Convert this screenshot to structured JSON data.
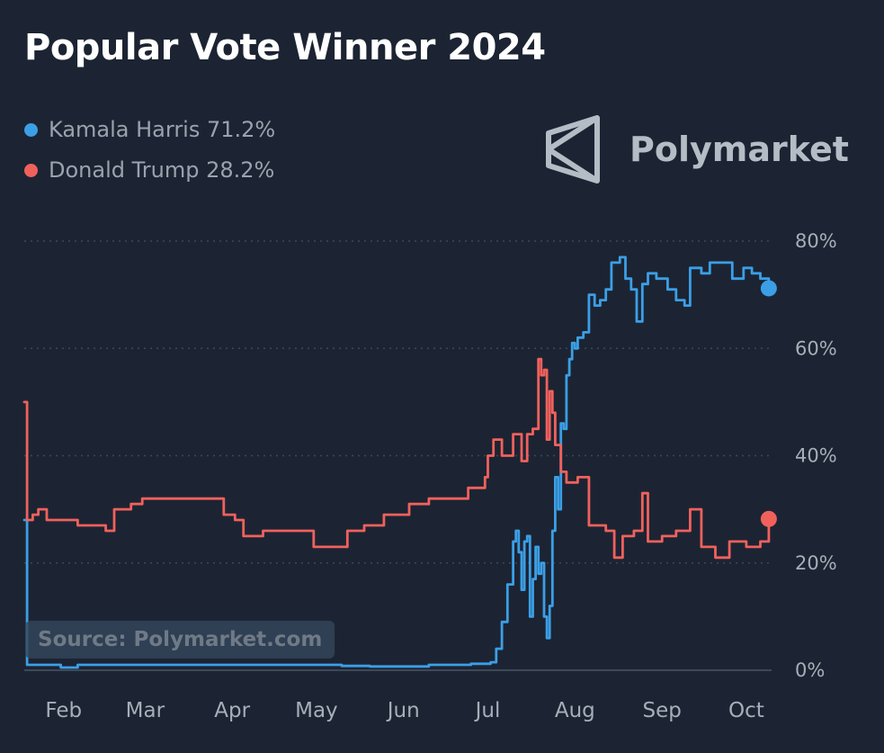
{
  "title": "Popular Vote Winner 2024",
  "brand": {
    "name": "Polymarket",
    "icon": "polymarket-logo-icon"
  },
  "legend": [
    {
      "label": "Kamala Harris 71.2%",
      "color": "#3b9fe6"
    },
    {
      "label": "Donald Trump 28.2%",
      "color": "#f1615c"
    }
  ],
  "source_text": "Source: Polymarket.com",
  "colors": {
    "background": "#1c2433",
    "harris": "#3b9fe6",
    "trump": "#f1615c",
    "grid": "#3d4757"
  },
  "chart_data": {
    "type": "line",
    "title": "Popular Vote Winner 2024",
    "xlabel": "",
    "ylabel": "",
    "x_ticks": [
      "Feb",
      "Mar",
      "Apr",
      "May",
      "Jun",
      "Jul",
      "Aug",
      "Sep",
      "Oct"
    ],
    "y_ticks": [
      "80%",
      "60%",
      "40%",
      "20%",
      "0%"
    ],
    "ylim": [
      0,
      80
    ],
    "x_range": [
      "2024-01-18",
      "2024-10-10"
    ],
    "grid": "horizontal dotted",
    "legend_placement": "top-left",
    "series": [
      {
        "name": "Kamala Harris",
        "color": "#3b9fe6",
        "end_marker": true,
        "points": [
          [
            "2024-01-18",
            28
          ],
          [
            "2024-01-19",
            1
          ],
          [
            "2024-01-31",
            0.5
          ],
          [
            "2024-02-05",
            0.5
          ],
          [
            "2024-02-06",
            1
          ],
          [
            "2024-03-15",
            1
          ],
          [
            "2024-04-15",
            1
          ],
          [
            "2024-05-10",
            0.8
          ],
          [
            "2024-05-20",
            0.7
          ],
          [
            "2024-06-10",
            1
          ],
          [
            "2024-06-25",
            1.2
          ],
          [
            "2024-07-02",
            1.5
          ],
          [
            "2024-07-04",
            4
          ],
          [
            "2024-07-06",
            9
          ],
          [
            "2024-07-08",
            16
          ],
          [
            "2024-07-10",
            24
          ],
          [
            "2024-07-11",
            26
          ],
          [
            "2024-07-12",
            22
          ],
          [
            "2024-07-13",
            15
          ],
          [
            "2024-07-14",
            24
          ],
          [
            "2024-07-15",
            25
          ],
          [
            "2024-07-16",
            10
          ],
          [
            "2024-07-17",
            17
          ],
          [
            "2024-07-18",
            23
          ],
          [
            "2024-07-19",
            18
          ],
          [
            "2024-07-20",
            20
          ],
          [
            "2024-07-21",
            10
          ],
          [
            "2024-07-22",
            6
          ],
          [
            "2024-07-23",
            12
          ],
          [
            "2024-07-24",
            26
          ],
          [
            "2024-07-25",
            36
          ],
          [
            "2024-07-26",
            30
          ],
          [
            "2024-07-27",
            46
          ],
          [
            "2024-07-28",
            45
          ],
          [
            "2024-07-29",
            55
          ],
          [
            "2024-07-30",
            58
          ],
          [
            "2024-07-31",
            61
          ],
          [
            "2024-08-01",
            60
          ],
          [
            "2024-08-02",
            62
          ],
          [
            "2024-08-04",
            63
          ],
          [
            "2024-08-06",
            70
          ],
          [
            "2024-08-08",
            68
          ],
          [
            "2024-08-10",
            69
          ],
          [
            "2024-08-12",
            71
          ],
          [
            "2024-08-14",
            76
          ],
          [
            "2024-08-17",
            77
          ],
          [
            "2024-08-19",
            73
          ],
          [
            "2024-08-21",
            71
          ],
          [
            "2024-08-23",
            65
          ],
          [
            "2024-08-25",
            72
          ],
          [
            "2024-08-27",
            74
          ],
          [
            "2024-08-30",
            73
          ],
          [
            "2024-09-03",
            71
          ],
          [
            "2024-09-06",
            69
          ],
          [
            "2024-09-09",
            68
          ],
          [
            "2024-09-11",
            75
          ],
          [
            "2024-09-15",
            74
          ],
          [
            "2024-09-18",
            76
          ],
          [
            "2024-09-23",
            76
          ],
          [
            "2024-09-26",
            73
          ],
          [
            "2024-09-30",
            75
          ],
          [
            "2024-10-03",
            74
          ],
          [
            "2024-10-06",
            73
          ],
          [
            "2024-10-09",
            71.2
          ]
        ]
      },
      {
        "name": "Donald Trump",
        "color": "#f1615c",
        "end_marker": true,
        "points": [
          [
            "2024-01-18",
            50
          ],
          [
            "2024-01-19",
            28
          ],
          [
            "2024-01-21",
            29
          ],
          [
            "2024-01-23",
            30
          ],
          [
            "2024-01-26",
            28
          ],
          [
            "2024-02-06",
            27
          ],
          [
            "2024-02-16",
            26
          ],
          [
            "2024-02-19",
            30
          ],
          [
            "2024-02-25",
            31
          ],
          [
            "2024-02-29",
            32
          ],
          [
            "2024-03-15",
            32
          ],
          [
            "2024-03-26",
            32
          ],
          [
            "2024-03-29",
            29
          ],
          [
            "2024-04-02",
            28
          ],
          [
            "2024-04-05",
            25
          ],
          [
            "2024-04-12",
            26
          ],
          [
            "2024-04-24",
            26
          ],
          [
            "2024-04-30",
            23
          ],
          [
            "2024-05-07",
            23
          ],
          [
            "2024-05-12",
            26
          ],
          [
            "2024-05-18",
            27
          ],
          [
            "2024-05-25",
            29
          ],
          [
            "2024-06-03",
            31
          ],
          [
            "2024-06-10",
            32
          ],
          [
            "2024-06-17",
            32
          ],
          [
            "2024-06-24",
            34
          ],
          [
            "2024-06-30",
            36
          ],
          [
            "2024-07-01",
            40
          ],
          [
            "2024-07-03",
            43
          ],
          [
            "2024-07-06",
            40
          ],
          [
            "2024-07-10",
            44
          ],
          [
            "2024-07-13",
            39
          ],
          [
            "2024-07-15",
            44
          ],
          [
            "2024-07-17",
            45
          ],
          [
            "2024-07-19",
            58
          ],
          [
            "2024-07-20",
            55
          ],
          [
            "2024-07-21",
            56
          ],
          [
            "2024-07-22",
            43
          ],
          [
            "2024-07-23",
            52
          ],
          [
            "2024-07-24",
            48
          ],
          [
            "2024-07-25",
            42
          ],
          [
            "2024-07-27",
            37
          ],
          [
            "2024-07-29",
            35
          ],
          [
            "2024-08-02",
            36
          ],
          [
            "2024-08-06",
            27
          ],
          [
            "2024-08-09",
            27
          ],
          [
            "2024-08-12",
            26
          ],
          [
            "2024-08-15",
            21
          ],
          [
            "2024-08-18",
            25
          ],
          [
            "2024-08-22",
            26
          ],
          [
            "2024-08-25",
            33
          ],
          [
            "2024-08-27",
            24
          ],
          [
            "2024-09-01",
            25
          ],
          [
            "2024-09-06",
            26
          ],
          [
            "2024-09-11",
            30
          ],
          [
            "2024-09-15",
            23
          ],
          [
            "2024-09-20",
            21
          ],
          [
            "2024-09-25",
            24
          ],
          [
            "2024-10-01",
            23
          ],
          [
            "2024-10-06",
            24
          ],
          [
            "2024-10-09",
            28.2
          ]
        ]
      }
    ]
  }
}
